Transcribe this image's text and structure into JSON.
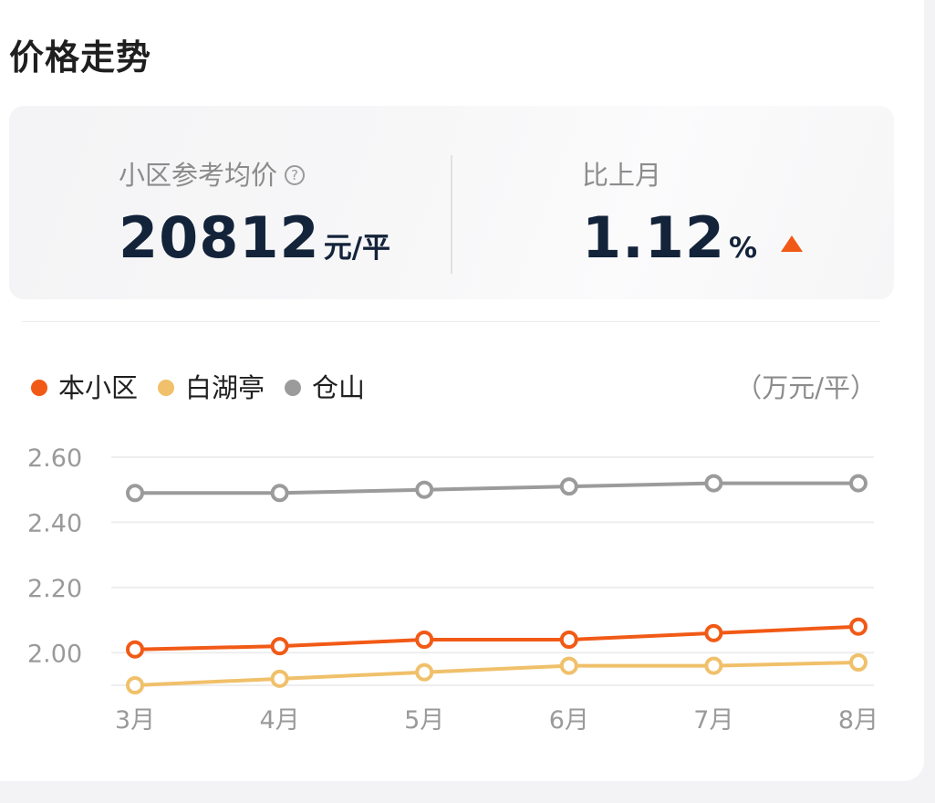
{
  "section_title": "价格走势",
  "summary": {
    "avg_price_label": "小区参考均价",
    "avg_price_help_icon": "question-circle-icon",
    "avg_price_value": "20812",
    "avg_price_unit": "元/平",
    "change_label": "比上月",
    "change_value": "1.12",
    "change_unit": "%",
    "change_icon": "triangle-up-icon"
  },
  "legend": {
    "items": [
      "本小区",
      "白湖亭",
      "仓山"
    ]
  },
  "unit_note": "（万元/平）",
  "colors": {
    "本小区": "#f15a16",
    "白湖亭": "#f0c06a",
    "仓山": "#9b9b9b"
  },
  "chart_data": {
    "type": "line",
    "categories": [
      "3月",
      "4月",
      "5月",
      "6月",
      "7月",
      "8月"
    ],
    "ylim": [
      1.9,
      2.6
    ],
    "yticks": [
      "2.60",
      "2.40",
      "2.20",
      "2.00"
    ],
    "ylabel": "（万元/平）",
    "grid": true,
    "legend_position": "top-left",
    "series": [
      {
        "name": "本小区",
        "values": [
          2.01,
          2.02,
          2.04,
          2.04,
          2.06,
          2.08
        ]
      },
      {
        "name": "白湖亭",
        "values": [
          1.9,
          1.92,
          1.94,
          1.96,
          1.96,
          1.97
        ]
      },
      {
        "name": "仓山",
        "values": [
          2.49,
          2.49,
          2.5,
          2.51,
          2.52,
          2.52
        ]
      }
    ]
  }
}
